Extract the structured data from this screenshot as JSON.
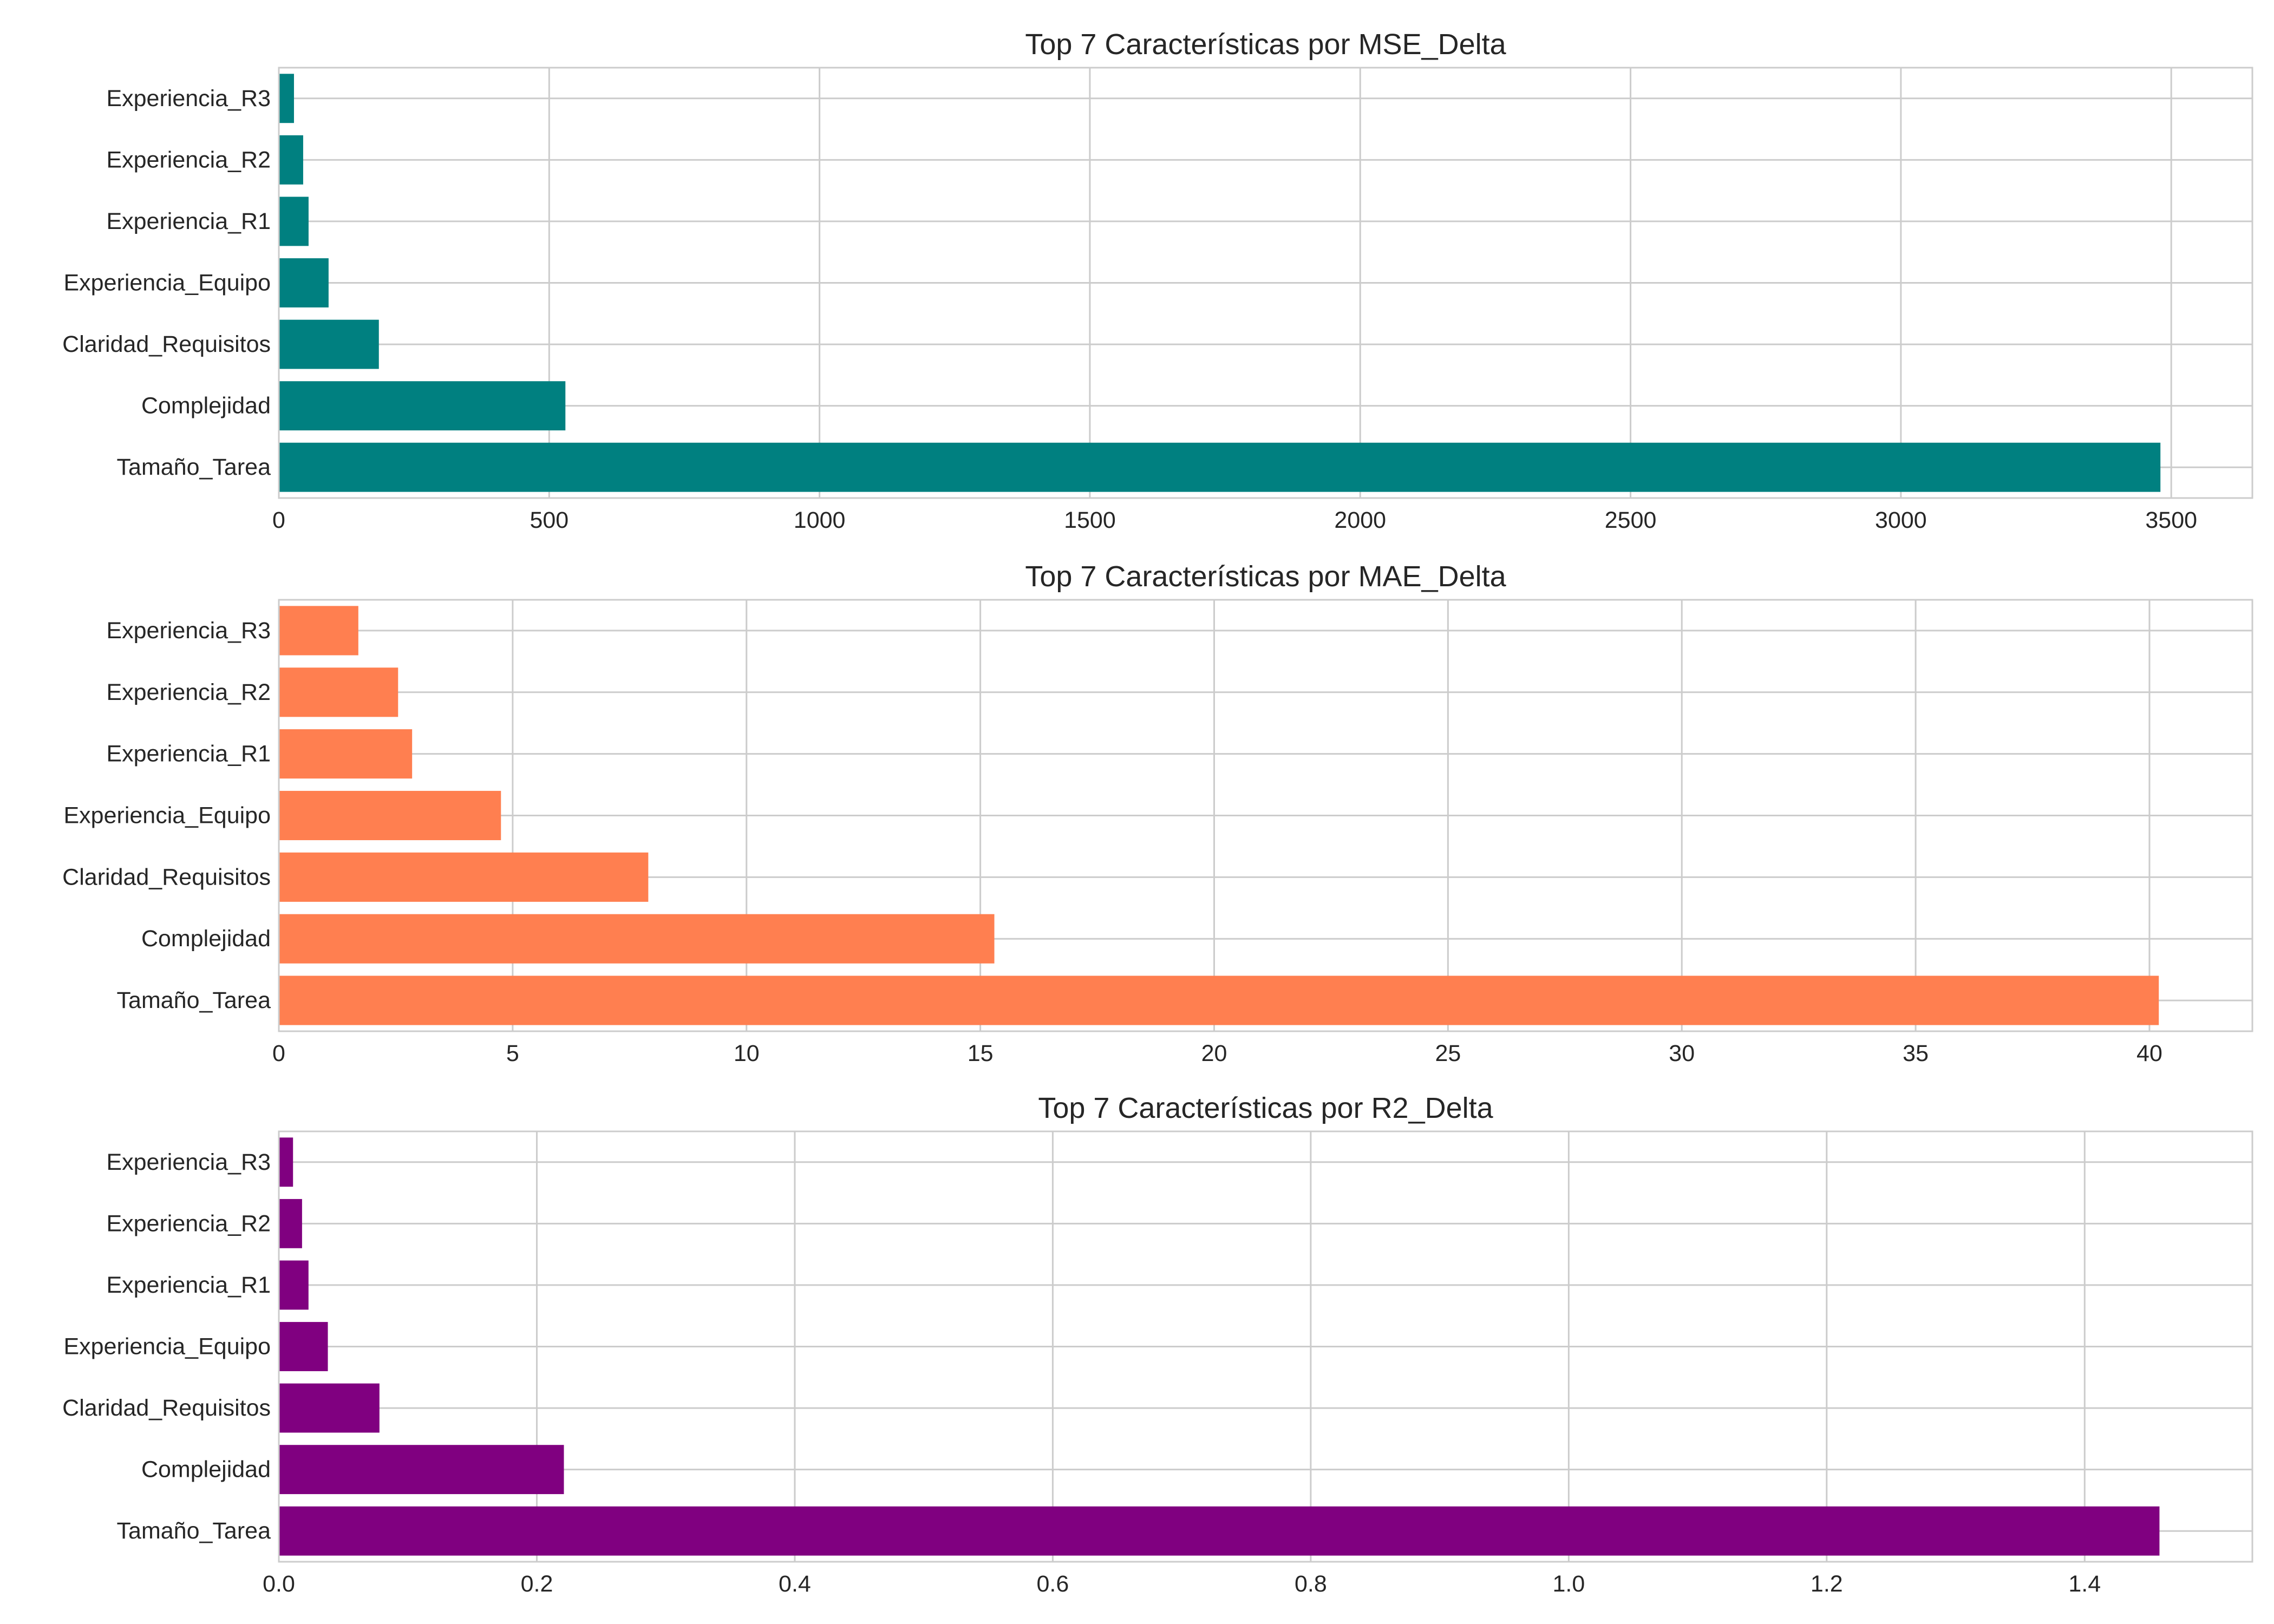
{
  "chart_data": [
    {
      "type": "bar",
      "orientation": "horizontal",
      "title": "Top 7 Características por MSE_Delta",
      "categories": [
        "Tamaño_Tarea",
        "Complejidad",
        "Claridad_Requisitos",
        "Experiencia_Equipo",
        "Experiencia_R1",
        "Experiencia_R2",
        "Experiencia_R3"
      ],
      "values": [
        3480,
        530,
        185,
        92,
        55,
        45,
        28
      ],
      "xlim": [
        0,
        3650
      ],
      "xticks": [
        0,
        500,
        1000,
        1500,
        2000,
        2500,
        3000,
        3500
      ],
      "xtick_labels": [
        "0",
        "500",
        "1000",
        "1500",
        "2000",
        "2500",
        "3000",
        "3500"
      ],
      "color": "#008080",
      "grid": true
    },
    {
      "type": "bar",
      "orientation": "horizontal",
      "title": "Top 7 Características por MAE_Delta",
      "categories": [
        "Tamaño_Tarea",
        "Complejidad",
        "Claridad_Requisitos",
        "Experiencia_Equipo",
        "Experiencia_R1",
        "Experiencia_R2",
        "Experiencia_R3"
      ],
      "values": [
        40.2,
        15.3,
        7.9,
        4.75,
        2.85,
        2.55,
        1.7
      ],
      "xlim": [
        0,
        42.2
      ],
      "xticks": [
        0,
        5,
        10,
        15,
        20,
        25,
        30,
        35,
        40
      ],
      "xtick_labels": [
        "0",
        "5",
        "10",
        "15",
        "20",
        "25",
        "30",
        "35",
        "40"
      ],
      "color": "#ff7f50",
      "grid": true
    },
    {
      "type": "bar",
      "orientation": "horizontal",
      "title": "Top 7 Características por R2_Delta",
      "categories": [
        "Tamaño_Tarea",
        "Complejidad",
        "Claridad_Requisitos",
        "Experiencia_Equipo",
        "Experiencia_R1",
        "Experiencia_R2",
        "Experiencia_R3"
      ],
      "values": [
        1.458,
        0.221,
        0.078,
        0.038,
        0.023,
        0.018,
        0.011
      ],
      "xlim": [
        0,
        1.53
      ],
      "xticks": [
        0,
        0.2,
        0.4,
        0.6,
        0.8,
        1.0,
        1.2,
        1.4
      ],
      "xtick_labels": [
        "0.0",
        "0.2",
        "0.4",
        "0.6",
        "0.8",
        "1.0",
        "1.2",
        "1.4"
      ],
      "color": "#800080",
      "grid": true
    }
  ]
}
